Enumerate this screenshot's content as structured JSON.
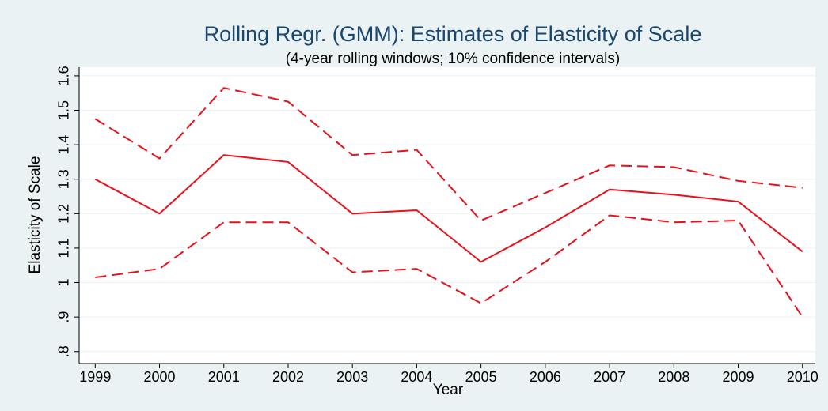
{
  "chart_data": {
    "type": "line",
    "title": "Rolling Regr. (GMM): Estimates of Elasticity of Scale",
    "subtitle": "(4-year rolling windows; 10% confidence intervals)",
    "x_label": "Year",
    "y_label": "Elasticity of Scale",
    "x": [
      1999,
      2000,
      2001,
      2002,
      2003,
      2004,
      2005,
      2006,
      2007,
      2008,
      2009,
      2010
    ],
    "series": [
      {
        "color": "#e8101a",
        "style": "solid",
        "values": [
          1.3,
          1.2,
          1.37,
          1.35,
          1.2,
          1.21,
          1.06,
          1.16,
          1.27,
          1.255,
          1.235,
          1.09
        ]
      },
      {
        "color": "#e8101a",
        "style": "dashed",
        "values": [
          1.475,
          1.36,
          1.565,
          1.525,
          1.37,
          1.385,
          1.18,
          1.26,
          1.34,
          1.335,
          1.295,
          1.275
        ]
      },
      {
        "color": "#e8101a",
        "style": "dashed",
        "values": [
          1.015,
          1.04,
          1.175,
          1.175,
          1.03,
          1.04,
          0.94,
          1.06,
          1.195,
          1.175,
          1.18,
          0.9
        ]
      }
    ],
    "xlim": [
      1998.75,
      2010.2
    ],
    "xticks": [
      1999,
      2000,
      2001,
      2002,
      2003,
      2004,
      2005,
      2006,
      2007,
      2008,
      2009,
      2010
    ],
    "ylim": [
      0.765,
      1.625
    ],
    "yticks": [
      {
        "value": 0.8,
        "label": ".8"
      },
      {
        "value": 0.9,
        "label": ".9"
      },
      1,
      1.1,
      1.2,
      1.3,
      1.4,
      1.5,
      1.6
    ],
    "grid": true
  }
}
